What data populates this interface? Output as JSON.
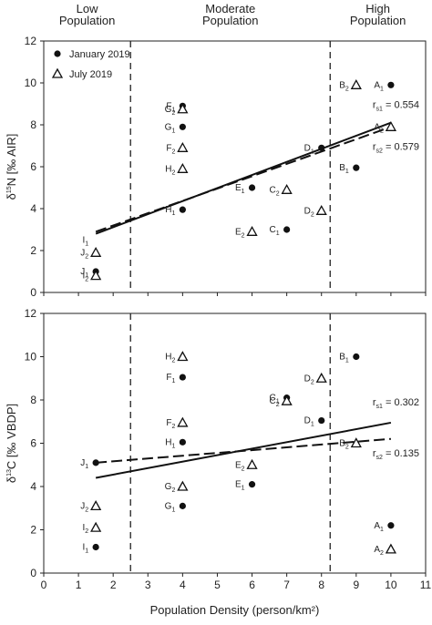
{
  "chart_data": {
    "type": "scatter",
    "x_ticks": [
      0,
      1,
      2,
      3,
      4,
      5,
      6,
      7,
      8,
      9,
      10,
      11
    ],
    "y_ticks": [
      0,
      2,
      4,
      6,
      8,
      10,
      12
    ],
    "xlim": [
      0,
      11
    ],
    "xlabel": "Population Density (person/km²)",
    "region_boundaries": [
      2.5,
      8.25
    ],
    "regions": [
      {
        "label_line1": "Low",
        "label_line2": "Population"
      },
      {
        "label_line1": "Moderate",
        "label_line2": "Population"
      },
      {
        "label_line1": "High",
        "label_line2": "Population"
      }
    ],
    "legend": [
      {
        "name": "January 2019",
        "marker": "circle"
      },
      {
        "name": "July 2019",
        "marker": "triangle"
      }
    ],
    "panels": [
      {
        "id": "n15",
        "ylabel_pre": "δ",
        "ylabel_sup": "15",
        "ylabel_post": "N [‰ AIR]",
        "ylim": [
          0,
          12
        ],
        "show_legend": true,
        "series": [
          {
            "name": "January 2019",
            "marker": "circle",
            "points": [
              {
                "x": 10.0,
                "y": 9.9,
                "base": "A",
                "sub": "1"
              },
              {
                "x": 9.0,
                "y": 5.95,
                "base": "B",
                "sub": "1"
              },
              {
                "x": 7.0,
                "y": 3.0,
                "base": "C",
                "sub": "1"
              },
              {
                "x": 8.0,
                "y": 6.9,
                "base": "D",
                "sub": "1"
              },
              {
                "x": 6.0,
                "y": 5.0,
                "base": "E",
                "sub": "1"
              },
              {
                "x": 4.0,
                "y": 8.9,
                "base": "F",
                "sub": "1"
              },
              {
                "x": 4.0,
                "y": 7.9,
                "base": "G",
                "sub": "1"
              },
              {
                "x": 4.0,
                "y": 3.95,
                "base": "H",
                "sub": "1"
              },
              {
                "x": 1.5,
                "y": 1.0,
                "base": "J",
                "sub": "1"
              }
            ]
          },
          {
            "name": "July 2019",
            "marker": "triangle",
            "points": [
              {
                "x": 10.0,
                "y": 7.9,
                "base": "A",
                "sub": "2"
              },
              {
                "x": 9.0,
                "y": 9.9,
                "base": "B",
                "sub": "2"
              },
              {
                "x": 7.0,
                "y": 4.9,
                "base": "C",
                "sub": "2"
              },
              {
                "x": 8.0,
                "y": 3.9,
                "base": "D",
                "sub": "2"
              },
              {
                "x": 6.0,
                "y": 2.9,
                "base": "E",
                "sub": "2"
              },
              {
                "x": 4.0,
                "y": 6.9,
                "base": "F",
                "sub": "2"
              },
              {
                "x": 4.0,
                "y": 8.75,
                "base": "G",
                "sub": "2"
              },
              {
                "x": 4.0,
                "y": 5.9,
                "base": "H",
                "sub": "2"
              },
              {
                "x": 1.5,
                "y": 1.9,
                "base": "J",
                "sub": "2"
              },
              {
                "x": 1.5,
                "y": 0.8,
                "base": "I",
                "sub": "2"
              }
            ]
          }
        ],
        "extra_labels": [
          {
            "x": 1.5,
            "y": 2.5,
            "base": "I",
            "sub": "1"
          }
        ],
        "regressions": [
          {
            "name": "January 2019",
            "style": "solid",
            "x0": 1.5,
            "y0": 2.8,
            "x1": 10.0,
            "y1": 8.1
          },
          {
            "name": "July 2019",
            "style": "dashed",
            "x0": 1.5,
            "y0": 2.9,
            "x1": 10.0,
            "y1": 7.9
          }
        ],
        "r_labels": [
          {
            "pre": "r",
            "sub": "s1",
            "post": "= 0.554"
          },
          {
            "pre": "r",
            "sub": "s2",
            "post": "= 0.579"
          }
        ]
      },
      {
        "id": "c13",
        "ylabel_pre": "δ",
        "ylabel_sup": "13",
        "ylabel_post": "C [‰ VBDP]",
        "ylim": [
          0,
          12
        ],
        "show_legend": false,
        "series": [
          {
            "name": "January 2019",
            "marker": "circle",
            "points": [
              {
                "x": 10.0,
                "y": 2.2,
                "base": "A",
                "sub": "1"
              },
              {
                "x": 9.0,
                "y": 10.0,
                "base": "B",
                "sub": "1"
              },
              {
                "x": 7.0,
                "y": 8.1,
                "base": "C",
                "sub": "1"
              },
              {
                "x": 8.0,
                "y": 7.05,
                "base": "D",
                "sub": "1"
              },
              {
                "x": 6.0,
                "y": 4.1,
                "base": "E",
                "sub": "1"
              },
              {
                "x": 4.0,
                "y": 9.05,
                "base": "F",
                "sub": "1"
              },
              {
                "x": 4.0,
                "y": 3.1,
                "base": "G",
                "sub": "1"
              },
              {
                "x": 4.0,
                "y": 6.05,
                "base": "H",
                "sub": "1"
              },
              {
                "x": 1.5,
                "y": 1.2,
                "base": "I",
                "sub": "1"
              },
              {
                "x": 1.5,
                "y": 5.1,
                "base": "J",
                "sub": "1"
              }
            ]
          },
          {
            "name": "July 2019",
            "marker": "triangle",
            "points": [
              {
                "x": 10.0,
                "y": 1.1,
                "base": "A",
                "sub": "2"
              },
              {
                "x": 9.0,
                "y": 6.0,
                "base": "B",
                "sub": "2"
              },
              {
                "x": 7.0,
                "y": 7.95,
                "base": "C",
                "sub": "2"
              },
              {
                "x": 8.0,
                "y": 9.0,
                "base": "D",
                "sub": "2"
              },
              {
                "x": 6.0,
                "y": 5.0,
                "base": "E",
                "sub": "2"
              },
              {
                "x": 4.0,
                "y": 6.95,
                "base": "F",
                "sub": "2"
              },
              {
                "x": 4.0,
                "y": 4.0,
                "base": "G",
                "sub": "2"
              },
              {
                "x": 4.0,
                "y": 10.0,
                "base": "H",
                "sub": "2"
              },
              {
                "x": 1.5,
                "y": 2.1,
                "base": "I",
                "sub": "2"
              },
              {
                "x": 1.5,
                "y": 3.1,
                "base": "J",
                "sub": "2"
              }
            ]
          }
        ],
        "extra_labels": [],
        "regressions": [
          {
            "name": "January 2019",
            "style": "solid",
            "x0": 1.5,
            "y0": 4.4,
            "x1": 10.0,
            "y1": 6.95
          },
          {
            "name": "July 2019",
            "style": "dashed",
            "x0": 1.5,
            "y0": 5.1,
            "x1": 10.0,
            "y1": 6.2
          }
        ],
        "r_labels": [
          {
            "pre": "r",
            "sub": "s1",
            "post": "= 0.302"
          },
          {
            "pre": "r",
            "sub": "s2",
            "post": "= 0.135"
          }
        ]
      }
    ]
  }
}
